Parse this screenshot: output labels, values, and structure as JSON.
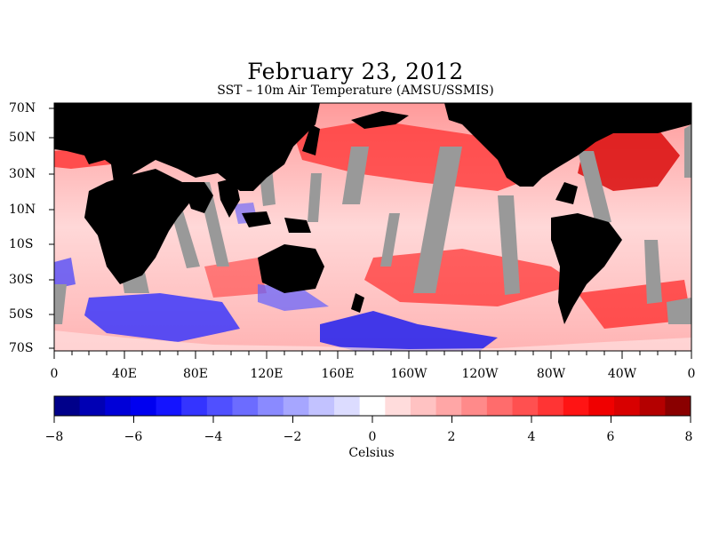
{
  "title": "February 23, 2012",
  "subtitle": "SST – 10m Air Temperature (AMSU/SSMIS)",
  "lat_labels": [
    "70N",
    "50N",
    "30N",
    "10N",
    "10S",
    "30S",
    "50S",
    "70S"
  ],
  "lon_labels": [
    "0",
    "40E",
    "80E",
    "120E",
    "160E",
    "160W",
    "120W",
    "80W",
    "40W",
    "0"
  ],
  "colorbar": {
    "ticks": [
      "−8",
      "−6",
      "−4",
      "−2",
      "0",
      "2",
      "4",
      "6",
      "8"
    ],
    "label": "Celsius",
    "min": -8,
    "max": 8,
    "colors": [
      "#00008a",
      "#0000b4",
      "#0000d8",
      "#0000f0",
      "#1414ff",
      "#3434ff",
      "#5050ff",
      "#6c6cff",
      "#8a8aff",
      "#a6a6ff",
      "#c2c2ff",
      "#dcdcff",
      "#ffffff",
      "#ffdcdc",
      "#ffc2c2",
      "#ffa6a6",
      "#ff8a8a",
      "#ff6c6c",
      "#ff5050",
      "#ff3434",
      "#ff1414",
      "#f00000",
      "#d80000",
      "#b40000",
      "#8a0000"
    ]
  },
  "colors": {
    "land": "#000000",
    "missing": "#999999",
    "background": "#ffffff"
  }
}
